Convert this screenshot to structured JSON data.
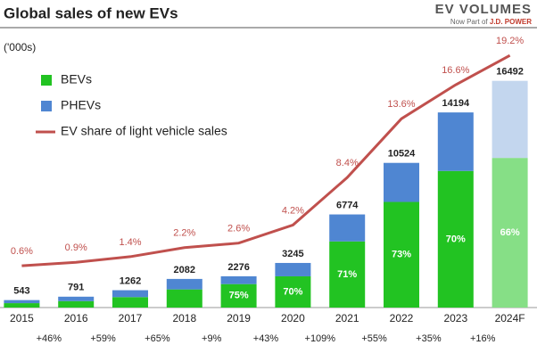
{
  "chart_data": {
    "type": "bar",
    "title": "Global sales of new EVs",
    "unit_label": "('000s)",
    "brand": {
      "name": "EV VOLUMES",
      "tagline": "Now Part of",
      "partner": "J.D. POWER"
    },
    "categories": [
      "2015",
      "2016",
      "2017",
      "2018",
      "2019",
      "2020",
      "2021",
      "2022",
      "2023",
      "2024F"
    ],
    "stacked": true,
    "ylim": [
      0,
      19000
    ],
    "y2lim": [
      -3.1,
      20
    ],
    "series": [
      {
        "name": "BEVs",
        "color": "#22c322",
        "colors": [
          "#22c322",
          "#22c322",
          "#22c322",
          "#22c322",
          "#22c322",
          "#22c322",
          "#22c322",
          "#22c322",
          "#22c322",
          "#86df86"
        ],
        "values": [
          320,
          470,
          760,
          1320,
          1707,
          2272,
          4810,
          7683,
          9936,
          10885
        ],
        "share_labels": [
          null,
          null,
          null,
          null,
          "75%",
          "70%",
          "71%",
          "73%",
          "70%",
          "66%"
        ]
      },
      {
        "name": "PHEVs",
        "color": "#4f86d2",
        "colors": [
          "#4f86d2",
          "#4f86d2",
          "#4f86d2",
          "#4f86d2",
          "#4f86d2",
          "#4f86d2",
          "#4f86d2",
          "#4f86d2",
          "#4f86d2",
          "#c3d6ee"
        ],
        "values": [
          223,
          321,
          502,
          762,
          569,
          973,
          1964,
          2841,
          4258,
          5607
        ]
      },
      {
        "name": "EV share of light vehicle sales",
        "type": "line",
        "axis": "y2",
        "color": "#c0504d",
        "values": [
          0.6,
          0.9,
          1.4,
          2.2,
          2.6,
          4.2,
          8.4,
          13.6,
          16.6,
          19.2
        ],
        "value_labels": [
          "0.6%",
          "0.9%",
          "1.4%",
          "2.2%",
          "2.6%",
          "4.2%",
          "8.4%",
          "13.6%",
          "16.6%",
          "19.2%"
        ]
      }
    ],
    "totals": [
      543,
      791,
      1262,
      2082,
      2276,
      3245,
      6774,
      10524,
      14194,
      16492
    ],
    "growth_labels": [
      null,
      "+46%",
      "+59%",
      "+65%",
      "+9%",
      "+43%",
      "+109%",
      "+55%",
      "+35%",
      "+16%"
    ],
    "legend": "upper left"
  }
}
